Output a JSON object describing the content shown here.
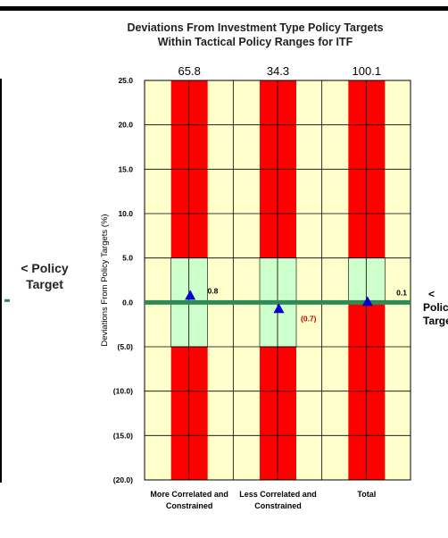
{
  "left_panel": {
    "target_label_lines": [
      "< Policy",
      "Target"
    ]
  },
  "chart_data": {
    "type": "bar",
    "title": "Deviations From Investment Type Policy Targets\nWithin Tactical Policy Ranges for  ITF",
    "ylabel": "Deviations From Policy Targets (%)",
    "xlabel": "",
    "ylim": [
      -20,
      25
    ],
    "yticks": [
      "25.0",
      "20.0",
      "15.0",
      "10.0",
      "5.0",
      "0.0",
      "(5.0)",
      "(10.0)",
      "(15.0)",
      "(20.0)"
    ],
    "categories": [
      {
        "lines": [
          "More Correlated and",
          "Constrained"
        ]
      },
      {
        "lines": [
          "Less Correlated and",
          "Constrained"
        ]
      },
      {
        "lines": [
          "Total"
        ]
      }
    ],
    "upper_range_labels": [
      "65.8",
      "34.3",
      "100.1"
    ],
    "tactical_range": [
      {
        "low": -5,
        "high": 5
      },
      {
        "low": -5,
        "high": 5
      },
      {
        "low": 0,
        "high": 5
      }
    ],
    "deviation": {
      "values": [
        0.8,
        -0.7,
        0.1
      ],
      "labels": [
        "0.8",
        "(0.7)",
        "0.1"
      ],
      "marker_color": "#0000cc"
    },
    "policy_target_line": {
      "value": 0,
      "label_lines": [
        "<",
        "Policy",
        "Target"
      ],
      "color": "#2e8b57"
    },
    "colors": {
      "plot_bg": "#ffffcc",
      "out_of_range": "#ff0000",
      "in_range": "#ccffcc",
      "negative_label": "#cc0000",
      "positive_label": "#000000"
    }
  }
}
